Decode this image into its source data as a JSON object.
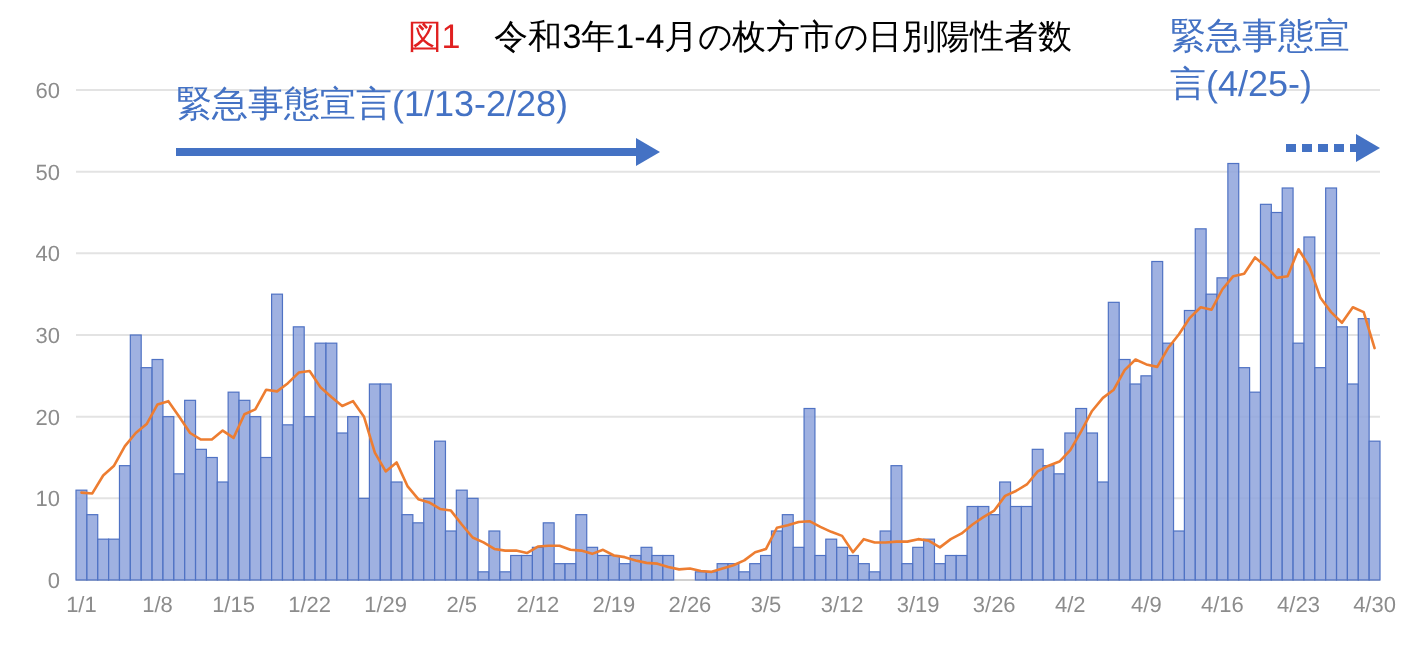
{
  "chart_data": {
    "type": "bar",
    "title": "図1 令和3年1-4月の枚方市の日別陽性者数",
    "categories": [
      "1/1",
      null,
      null,
      null,
      null,
      null,
      null,
      "1/8",
      null,
      null,
      null,
      null,
      null,
      null,
      "1/15",
      null,
      null,
      null,
      null,
      null,
      null,
      "1/22",
      null,
      null,
      null,
      null,
      null,
      null,
      "1/29",
      null,
      null,
      null,
      null,
      null,
      null,
      "2/5",
      null,
      null,
      null,
      null,
      null,
      null,
      "2/12",
      null,
      null,
      null,
      null,
      null,
      null,
      "2/19",
      null,
      null,
      null,
      null,
      null,
      null,
      "2/26",
      null,
      null,
      null,
      null,
      null,
      null,
      "3/5",
      null,
      null,
      null,
      null,
      null,
      null,
      "3/12",
      null,
      null,
      null,
      null,
      null,
      null,
      "3/19",
      null,
      null,
      null,
      null,
      null,
      null,
      "3/26",
      null,
      null,
      null,
      null,
      null,
      null,
      "4/2",
      null,
      null,
      null,
      null,
      null,
      null,
      "4/9",
      null,
      null,
      null,
      null,
      null,
      null,
      "4/16",
      null,
      null,
      null,
      null,
      null,
      null,
      "4/23",
      null,
      null,
      null,
      null,
      null,
      null,
      "4/30"
    ],
    "series": [
      {
        "color": "#8ea3dc",
        "values": [
          11,
          8,
          5,
          5,
          14,
          30,
          26,
          27,
          20,
          13,
          22,
          16,
          15,
          12,
          23,
          22,
          20,
          15,
          35,
          19,
          31,
          20,
          29,
          29,
          18,
          20,
          10,
          24,
          24,
          12,
          8,
          7,
          10,
          17,
          6,
          11,
          10,
          1,
          6,
          1,
          3,
          3,
          4,
          7,
          2,
          2,
          8,
          4,
          3,
          3,
          2,
          3,
          4,
          3,
          3,
          0,
          0,
          1,
          1,
          2,
          2,
          1,
          2,
          3,
          6,
          8,
          4,
          21,
          3,
          5,
          4,
          3,
          2,
          1,
          6,
          14,
          2,
          4,
          5,
          2,
          3,
          3,
          9,
          9,
          8,
          12,
          9,
          9,
          16,
          14,
          13,
          18,
          21,
          18,
          12,
          34,
          27,
          24,
          25,
          39,
          29,
          6,
          33,
          43,
          35,
          37,
          51,
          26,
          23,
          46,
          45,
          48,
          29,
          42,
          26,
          48,
          31,
          24,
          32,
          17
        ]
      },
      {
        "type": "line",
        "color": "#ed7d31",
        "values": [
          10.7,
          10.6,
          12.8,
          14,
          16.4,
          18,
          19.1,
          21.5,
          21.9,
          20,
          18,
          17.2,
          17.2,
          18.3,
          17.4,
          20.3,
          20.9,
          23.3,
          23.1,
          24.1,
          25.4,
          25.6,
          23.6,
          22.4,
          21.3,
          21.9,
          20,
          15.6,
          13.3,
          14.4,
          11.5,
          9.9,
          9.5,
          8.7,
          8.5,
          6.8,
          5.2,
          4.6,
          3.8,
          3.6,
          3.6,
          3.3,
          4.1,
          4.2,
          4.2,
          3.7,
          3.6,
          3.2,
          3.7,
          3,
          2.8,
          2.4,
          2.1,
          2,
          1.6,
          1.3,
          1.4,
          1.1,
          1,
          1.4,
          1.8,
          2.4,
          3.4,
          3.8,
          6.4,
          6.7,
          7.1,
          7.2,
          6.5,
          5.9,
          5.4,
          3.4,
          5,
          4.6,
          4.6,
          4.7,
          4.7,
          5,
          4.8,
          4,
          5,
          5.7,
          6.8,
          7.7,
          8.5,
          10.3,
          10.9,
          11.7,
          13.3,
          14,
          14.5,
          15.9,
          18.2,
          20.7,
          22.3,
          23.3,
          25.7,
          27,
          26.4,
          26.1,
          28.4,
          30.1,
          32.1,
          33.4,
          33.1,
          35.6,
          37.2,
          37.5,
          39.5,
          38.4,
          37,
          37.2,
          40.5,
          38.4,
          34.6,
          32.8,
          31.5,
          33.4,
          32.8,
          28.4
        ]
      }
    ],
    "ylim": [
      0,
      60
    ],
    "yticks": [
      0,
      10,
      20,
      30,
      40,
      50,
      60
    ],
    "grid": "y",
    "annotations": [
      "緊急事態宣言(1/13-2/28)",
      "緊急事態宣言(4/25-)"
    ]
  }
}
